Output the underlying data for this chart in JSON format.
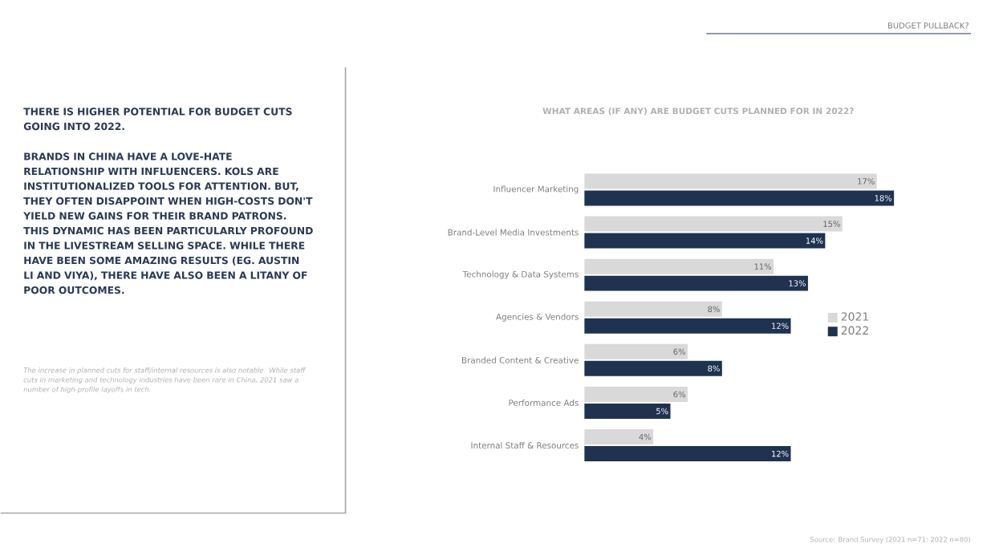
{
  "chart_data": {
    "type": "bar",
    "orientation": "horizontal",
    "title": "WHAT AREAS (IF ANY) ARE BUDGET CUTS PLANNED FOR IN 2022?",
    "categories": [
      "Influencer Marketing",
      "Brand-Level Media Investments",
      "Technology & Data Systems",
      "Agencies & Vendors",
      "Branded Content & Creative",
      "Performance Ads",
      "Internal Staff & Resources"
    ],
    "series": [
      {
        "name": "2021",
        "color": "#d9d9d9",
        "values": [
          17,
          15,
          11,
          8,
          6,
          6,
          4
        ],
        "value_labels": [
          "17%",
          "15%",
          "11%",
          "8%",
          "6%",
          "6%",
          "4%"
        ]
      },
      {
        "name": "2022",
        "color": "#1f3250",
        "values": [
          18,
          14,
          13,
          12,
          8,
          5,
          12
        ],
        "value_labels": [
          "18%",
          "14%",
          "13%",
          "12%",
          "8%",
          "5%",
          "12%"
        ]
      }
    ],
    "legend": "right",
    "annotations": [
      "BUDGET PULLBACK?",
      "THERE IS HIGHER POTENTIAL FOR BUDGET CUTS GOING INTO 2022.",
      "BRANDS IN CHINA HAVE A LOVE-HATE RELATIONSHIP WITH INFLUENCERS. KOLS ARE INSTITUTIONALIZED TOOLS FOR ATTENTION. BUT, THEY OFTEN DISAPPOINT WHEN HIGH-COSTS DON'T YIELD NEW GAINS FOR THEIR BRAND PATRONS. THIS DYNAMIC HAS BEEN PARTICULARLY PROFOUND IN THE LIVESTREAM SELLING SPACE. WHILE THERE HAVE BEEN SOME AMAZING RESULTS (EG. AUSTIN LI AND VIYA), THERE HAVE ALSO BEEN A LITANY OF POOR OUTCOMES.",
      "The increase in planned cuts for staff/internal resources is also notable. While staff cuts in marketing and technology industries have been rare in China, 2021 saw a number of high-profile layoffs in tech.",
      "Source: Brand Survey (2021 n=71; 2022 n=80)"
    ]
  }
}
